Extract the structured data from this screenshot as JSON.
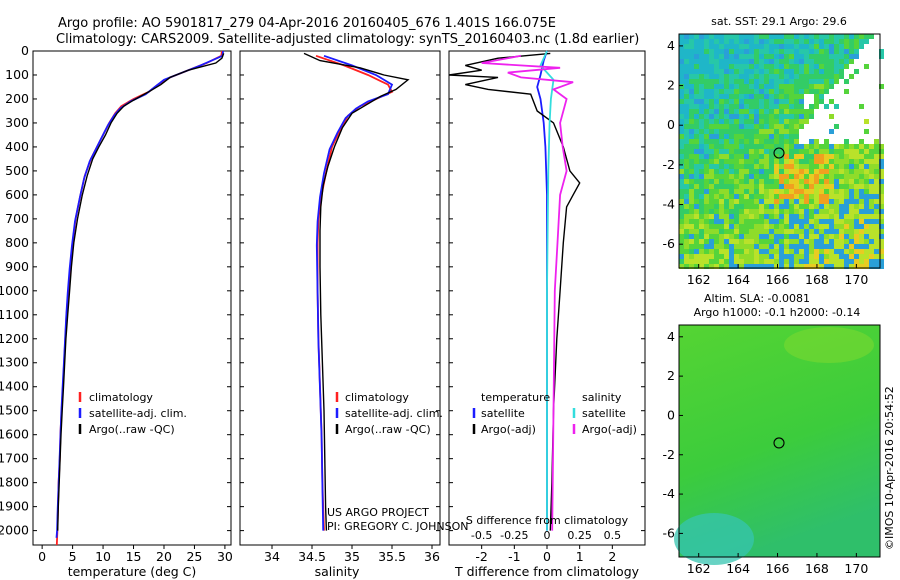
{
  "header": {
    "line1": "Argo profile: AO 5901817_279 04-Apr-2016 20160405_676 1.401S 166.075E",
    "line2": "Climatology: CARS2009. Satellite-adjusted climatology: synTS_20160403.nc (1.8d earlier)"
  },
  "colors": {
    "climatology": "#ff2020",
    "satellite_adj": "#1c1cff",
    "argo": "#000000",
    "satellite_s": "#33dddd",
    "argo_adj_s": "#ee22ee"
  },
  "chart_data": [
    {
      "id": "temperature",
      "type": "line",
      "xlabel": "temperature (deg C)",
      "ylim": [
        0,
        2060
      ],
      "xlim": [
        -1.5,
        31
      ],
      "xticks": [
        0,
        5,
        10,
        15,
        20,
        25,
        30
      ],
      "yticks": [
        0,
        100,
        200,
        300,
        400,
        500,
        600,
        700,
        800,
        900,
        1000,
        1100,
        1200,
        1300,
        1400,
        1500,
        1600,
        1700,
        1800,
        1900,
        2000
      ],
      "legend": [
        "climatology",
        "satellite-adj. clim.",
        "Argo(..raw -QC)"
      ],
      "series": [
        {
          "name": "climatology",
          "points": [
            [
              29.5,
              0
            ],
            [
              29.4,
              20
            ],
            [
              27,
              50
            ],
            [
              24,
              80
            ],
            [
              21,
              110
            ],
            [
              19,
              140
            ],
            [
              17.5,
              170
            ],
            [
              15,
              200
            ],
            [
              13,
              230
            ],
            [
              12,
              260
            ],
            [
              11,
              300
            ],
            [
              10,
              350
            ],
            [
              9,
              400
            ],
            [
              8,
              450
            ],
            [
              7,
              520
            ],
            [
              6.3,
              600
            ],
            [
              5.5,
              700
            ],
            [
              5,
              800
            ],
            [
              4.6,
              900
            ],
            [
              4.3,
              1000
            ],
            [
              4,
              1100
            ],
            [
              3.8,
              1200
            ],
            [
              3.6,
              1300
            ],
            [
              3.4,
              1400
            ],
            [
              3.2,
              1500
            ],
            [
              3,
              1600
            ],
            [
              2.9,
              1700
            ],
            [
              2.7,
              1800
            ],
            [
              2.6,
              1900
            ],
            [
              2.5,
              2000
            ],
            [
              2.4,
              2060
            ]
          ]
        },
        {
          "name": "satellite-adj. clim.",
          "points": [
            [
              29.7,
              0
            ],
            [
              29.6,
              20
            ],
            [
              26,
              60
            ],
            [
              23,
              90
            ],
            [
              20,
              120
            ],
            [
              18.5,
              150
            ],
            [
              17,
              180
            ],
            [
              14.5,
              210
            ],
            [
              12.8,
              240
            ],
            [
              11.8,
              270
            ],
            [
              10.8,
              310
            ],
            [
              9.8,
              360
            ],
            [
              8.8,
              410
            ],
            [
              7.8,
              460
            ],
            [
              6.9,
              530
            ],
            [
              6.2,
              610
            ],
            [
              5.4,
              710
            ],
            [
              4.9,
              810
            ],
            [
              4.5,
              910
            ],
            [
              4.2,
              1010
            ],
            [
              3.95,
              1110
            ],
            [
              3.75,
              1210
            ],
            [
              3.55,
              1310
            ],
            [
              3.35,
              1410
            ],
            [
              3.15,
              1510
            ],
            [
              3,
              1610
            ],
            [
              2.85,
              1710
            ],
            [
              2.7,
              1810
            ],
            [
              2.55,
              1910
            ],
            [
              2.45,
              2000
            ],
            [
              2.35,
              2030
            ]
          ]
        },
        {
          "name": "Argo(..raw -QC)",
          "points": [
            [
              29.8,
              10
            ],
            [
              29.5,
              30
            ],
            [
              28.5,
              50
            ],
            [
              24,
              80
            ],
            [
              21,
              110
            ],
            [
              19.5,
              140
            ],
            [
              17.5,
              170
            ],
            [
              15,
              205
            ],
            [
              13.4,
              230
            ],
            [
              12.3,
              260
            ],
            [
              11.3,
              300
            ],
            [
              10.4,
              350
            ],
            [
              9.3,
              400
            ],
            [
              8.3,
              450
            ],
            [
              7.4,
              520
            ],
            [
              6.6,
              600
            ],
            [
              5.8,
              700
            ],
            [
              5.2,
              800
            ],
            [
              4.8,
              900
            ],
            [
              4.5,
              1000
            ],
            [
              4.2,
              1100
            ],
            [
              3.9,
              1200
            ],
            [
              3.7,
              1300
            ],
            [
              3.5,
              1400
            ],
            [
              3.3,
              1500
            ],
            [
              3.1,
              1600
            ],
            [
              2.95,
              1700
            ],
            [
              2.8,
              1800
            ],
            [
              2.65,
              1900
            ],
            [
              2.55,
              2000
            ]
          ]
        }
      ]
    },
    {
      "id": "salinity",
      "type": "line",
      "xlabel": "salinity",
      "ylim": [
        0,
        2060
      ],
      "xlim": [
        33.6,
        36.1
      ],
      "xticks": [
        34,
        34.5,
        35,
        35.5,
        36
      ],
      "xticklabels": [
        "34",
        "34.5",
        "35",
        "35.5",
        "36"
      ],
      "legend": [
        "climatology",
        "satellite-adj. clim.",
        "Argo(..raw -QC)"
      ],
      "annotation": [
        "US ARGO PROJECT",
        "PI: GREGORY C. JOHNSON"
      ],
      "series": [
        {
          "name": "climatology",
          "points": [
            [
              34.55,
              20
            ],
            [
              34.9,
              60
            ],
            [
              35.2,
              100
            ],
            [
              35.45,
              140
            ],
            [
              35.5,
              170
            ],
            [
              35.3,
              200
            ],
            [
              35.1,
              230
            ],
            [
              34.95,
              270
            ],
            [
              34.85,
              330
            ],
            [
              34.75,
              400
            ],
            [
              34.68,
              500
            ],
            [
              34.62,
              600
            ],
            [
              34.58,
              700
            ],
            [
              34.57,
              800
            ],
            [
              34.57,
              1000
            ],
            [
              34.58,
              1200
            ],
            [
              34.6,
              1400
            ],
            [
              34.62,
              1600
            ],
            [
              34.63,
              1800
            ],
            [
              34.65,
              2000
            ]
          ]
        },
        {
          "name": "satellite-adj. clim.",
          "points": [
            [
              34.65,
              20
            ],
            [
              35,
              60
            ],
            [
              35.3,
              100
            ],
            [
              35.5,
              140
            ],
            [
              35.45,
              180
            ],
            [
              35.2,
              210
            ],
            [
              35.05,
              240
            ],
            [
              34.92,
              280
            ],
            [
              34.82,
              340
            ],
            [
              34.72,
              410
            ],
            [
              34.65,
              510
            ],
            [
              34.6,
              610
            ],
            [
              34.57,
              710
            ],
            [
              34.56,
              810
            ],
            [
              34.57,
              1010
            ],
            [
              34.58,
              1210
            ],
            [
              34.6,
              1410
            ],
            [
              34.62,
              1610
            ],
            [
              34.63,
              1810
            ],
            [
              34.64,
              2000
            ]
          ]
        },
        {
          "name": "Argo(..raw -QC)",
          "points": [
            [
              34.4,
              10
            ],
            [
              34.6,
              40
            ],
            [
              35.1,
              70
            ],
            [
              35.4,
              100
            ],
            [
              35.7,
              120
            ],
            [
              35.55,
              160
            ],
            [
              35.35,
              190
            ],
            [
              35.2,
              220
            ],
            [
              35.0,
              260
            ],
            [
              34.88,
              320
            ],
            [
              34.78,
              400
            ],
            [
              34.7,
              480
            ],
            [
              34.64,
              560
            ],
            [
              34.61,
              650
            ],
            [
              34.6,
              750
            ],
            [
              34.6,
              900
            ],
            [
              34.61,
              1100
            ],
            [
              34.63,
              1300
            ],
            [
              34.65,
              1500
            ],
            [
              34.66,
              1700
            ],
            [
              34.67,
              1900
            ],
            [
              34.68,
              2000
            ]
          ]
        }
      ]
    },
    {
      "id": "differences",
      "type": "line",
      "xlabel": "T difference from climatology",
      "toplabel": "S difference from climatology",
      "ylim": [
        0,
        2060
      ],
      "xlim": [
        -3,
        3
      ],
      "xticks": [
        -2,
        -1,
        0,
        1,
        2
      ],
      "xticklabels": [
        "-2",
        "-1",
        "0",
        "1",
        "2"
      ],
      "s_ticklabels": [
        "-0.5",
        "-0.25",
        "0",
        "0.25",
        "0.5"
      ],
      "legend_left": [
        "temperature",
        "satellite",
        "Argo(-adj)"
      ],
      "legend_right": [
        "salinity",
        "satellite",
        "Argo(-adj)"
      ],
      "series": [
        {
          "name": "T satellite",
          "points": [
            [
              0,
              0
            ],
            [
              -0.1,
              40
            ],
            [
              -0.2,
              100
            ],
            [
              -0.3,
              150
            ],
            [
              -0.2,
              200
            ],
            [
              -0.1,
              300
            ],
            [
              -0.05,
              400
            ],
            [
              0,
              600
            ],
            [
              0,
              1000
            ],
            [
              0,
              2000
            ]
          ]
        },
        {
          "name": "T Argo(-adj)",
          "points": [
            [
              0.1,
              10
            ],
            [
              -1.5,
              30
            ],
            [
              -2.5,
              60
            ],
            [
              -2,
              80
            ],
            [
              -3,
              100
            ],
            [
              -1.5,
              110
            ],
            [
              -2.5,
              140
            ],
            [
              -1.8,
              160
            ],
            [
              -0.5,
              180
            ],
            [
              -0.3,
              250
            ],
            [
              0.2,
              300
            ],
            [
              0.5,
              400
            ],
            [
              0.6,
              450
            ],
            [
              0.7,
              500
            ],
            [
              1,
              550
            ],
            [
              0.8,
              600
            ],
            [
              0.6,
              650
            ],
            [
              0.5,
              800
            ],
            [
              0.4,
              1000
            ],
            [
              0.3,
              1200
            ],
            [
              0.2,
              1500
            ],
            [
              0.15,
              1800
            ],
            [
              0.1,
              2000
            ]
          ]
        },
        {
          "name": "S satellite",
          "points": [
            [
              0,
              0
            ],
            [
              -0.05,
              60
            ],
            [
              0.05,
              120
            ],
            [
              0.03,
              200
            ],
            [
              0.02,
              300
            ],
            [
              0.01,
              500
            ],
            [
              0,
              1000
            ],
            [
              0,
              2000
            ]
          ]
        },
        {
          "name": "S Argo(-adj)",
          "points": [
            [
              -0.2,
              20
            ],
            [
              -0.5,
              50
            ],
            [
              0.1,
              70
            ],
            [
              -0.3,
              90
            ],
            [
              -0.2,
              110
            ],
            [
              0.2,
              130
            ],
            [
              0.05,
              160
            ],
            [
              0.15,
              200
            ],
            [
              0.1,
              300
            ],
            [
              0.12,
              400
            ],
            [
              0.15,
              500
            ],
            [
              0.1,
              600
            ],
            [
              0.08,
              800
            ],
            [
              0.06,
              1000
            ],
            [
              0.05,
              1500
            ],
            [
              0.04,
              2000
            ]
          ]
        }
      ]
    },
    {
      "id": "sst_map",
      "type": "heatmap",
      "title": "sat. SST: 29.1  Argo: 29.6",
      "xticks": [
        162,
        164,
        166,
        168,
        170
      ],
      "yticks": [
        4,
        2,
        0,
        -2,
        -4,
        -6
      ],
      "xlim": [
        161,
        171.2
      ],
      "ylim": [
        -7.2,
        4.6
      ],
      "marker": [
        166.075,
        -1.401
      ]
    },
    {
      "id": "sla_map",
      "type": "heatmap",
      "title": "Altim. SLA: -0.0081",
      "subtitle": "Argo h1000: -0.1  h2000: -0.14",
      "xticks": [
        162,
        164,
        166,
        168,
        170
      ],
      "yticks": [
        4,
        2,
        0,
        -2,
        -4,
        -6
      ],
      "xlim": [
        161,
        171.2
      ],
      "ylim": [
        -7.2,
        4.6
      ],
      "marker": [
        166.075,
        -1.401
      ]
    }
  ],
  "side_label": "©IMOS 10-Apr-2016 20:54:52"
}
